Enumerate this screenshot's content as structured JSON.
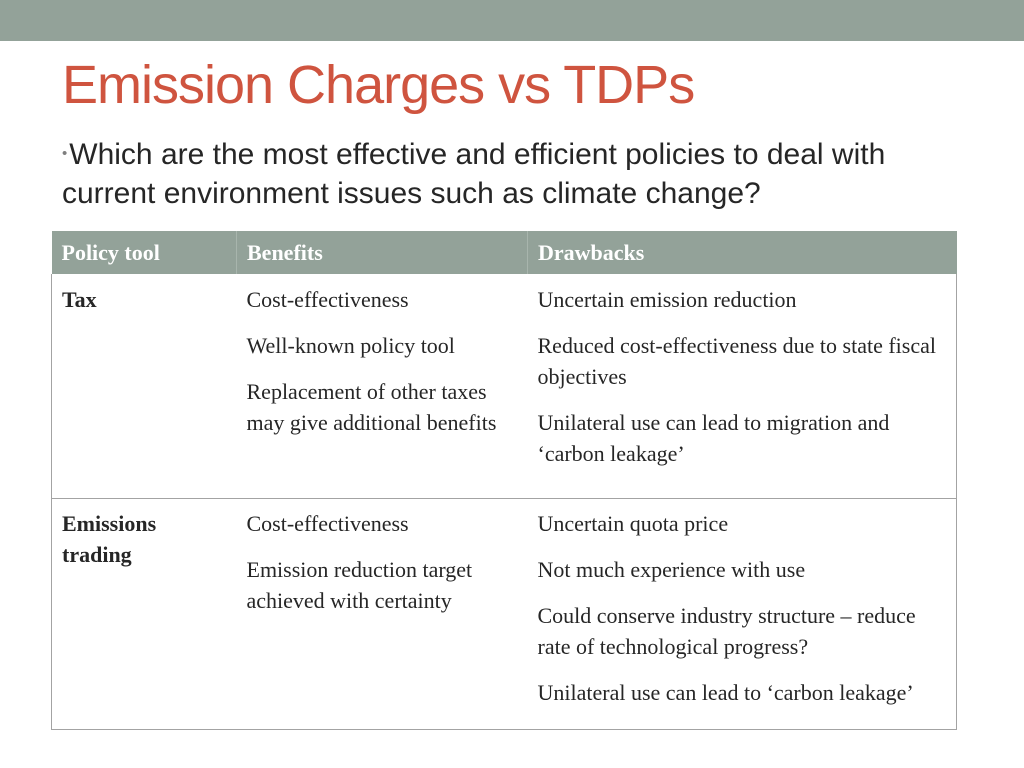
{
  "slide": {
    "title": "Emission Charges vs TDPs",
    "bullet": "Which are the most effective and efficient policies to deal with current environment issues such as climate change?",
    "bullet_marker": "•"
  },
  "colors": {
    "band": "#93a299",
    "title": "#cf543f",
    "text": "#262626"
  },
  "table": {
    "headers": [
      "Policy tool",
      "Benefits",
      "Drawbacks"
    ],
    "rows": [
      {
        "policy": "Tax",
        "benefits": [
          "Cost-effectiveness",
          "Well-known policy tool",
          "Replacement of other taxes may give additional benefits"
        ],
        "drawbacks": [
          "Uncertain emission reduction",
          "Reduced cost-effectiveness due to state fiscal objectives",
          "Unilateral use can lead to migration and ‘carbon leakage’"
        ]
      },
      {
        "policy": "Emissions trading",
        "benefits": [
          "Cost-effectiveness",
          "Emission reduction target achieved with certainty"
        ],
        "drawbacks": [
          "Uncertain quota price",
          "Not much experience with use",
          "Could conserve industry structure – reduce rate of technological progress?",
          "Unilateral use can lead to ‘carbon leakage’"
        ]
      }
    ]
  }
}
